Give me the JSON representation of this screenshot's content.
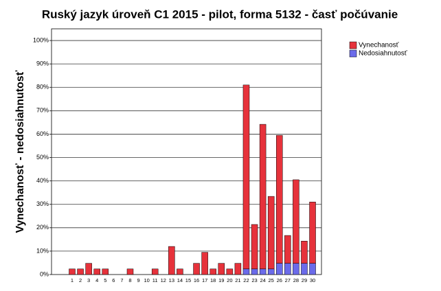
{
  "chart_data": {
    "type": "stacked_bar",
    "title": "Ruský jazyk úroveň C1 2015 - pilot, forma 5132 - časť počúvanie",
    "y_label": "Vynechanosť - nedosiahnutosť",
    "categories": [
      "1",
      "2",
      "3",
      "4",
      "5",
      "6",
      "7",
      "8",
      "9",
      "10",
      "11",
      "12",
      "13",
      "14",
      "15",
      "16",
      "17",
      "18",
      "19",
      "20",
      "21",
      "22",
      "23",
      "24",
      "25",
      "26",
      "27",
      "28",
      "29",
      "30"
    ],
    "series": [
      {
        "name": "Vynechanosť",
        "color": "#e6323b",
        "values": [
          2.4,
          2.4,
          4.8,
          2.4,
          2.4,
          0,
          0,
          2.4,
          0,
          0,
          2.4,
          0,
          12,
          2.4,
          0,
          4.8,
          9.5,
          2.4,
          4.8,
          2.4,
          4.8,
          78.6,
          19,
          61.8,
          31,
          54.7,
          11.9,
          35.7,
          9.5,
          26.2
        ]
      },
      {
        "name": "Nedosiahnutosť",
        "color": "#6b6bea",
        "values": [
          0,
          0,
          0,
          0,
          0,
          0,
          0,
          0,
          0,
          0,
          0,
          0,
          0,
          0,
          0,
          0,
          0,
          0,
          0,
          0,
          0,
          2.4,
          2.4,
          2.4,
          2.4,
          4.8,
          4.8,
          4.8,
          4.8,
          4.8
        ]
      }
    ],
    "ylim": [
      0,
      105
    ],
    "yticks": [
      {
        "value": 0,
        "label": "0%"
      },
      {
        "value": 10,
        "label": "10%"
      },
      {
        "value": 20,
        "label": "20%"
      },
      {
        "value": 30,
        "label": "30%"
      },
      {
        "value": 40,
        "label": "40%"
      },
      {
        "value": 50,
        "label": "50%"
      },
      {
        "value": 60,
        "label": "60%"
      },
      {
        "value": 70,
        "label": "70%"
      },
      {
        "value": 80,
        "label": "80%"
      },
      {
        "value": 90,
        "label": "90%"
      },
      {
        "value": 100,
        "label": "100%"
      }
    ],
    "grid": true,
    "legend": "top-right"
  }
}
